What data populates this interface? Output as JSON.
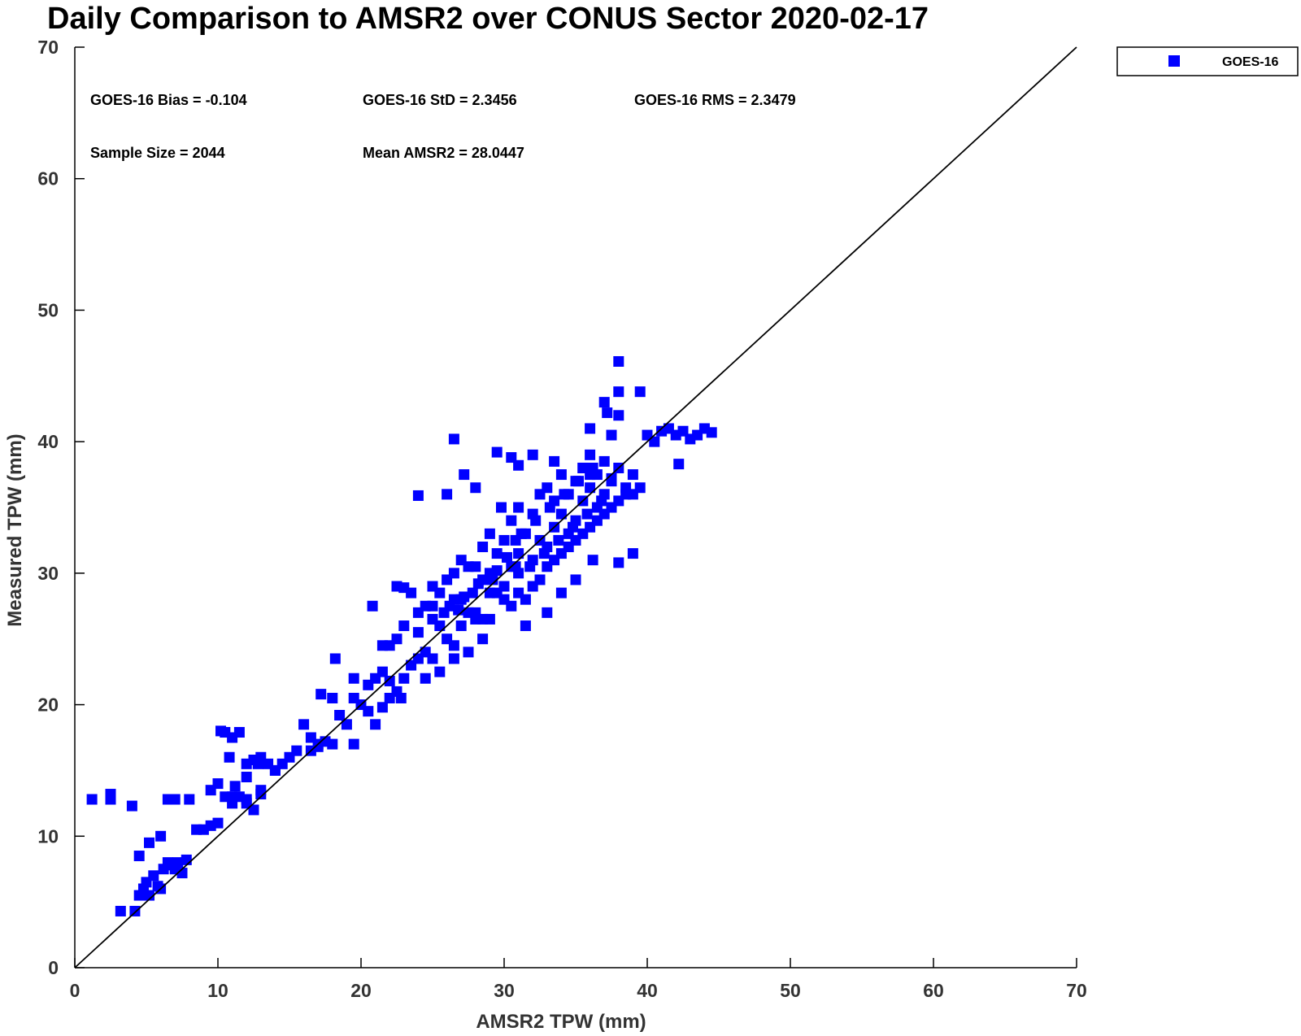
{
  "chart_data": {
    "type": "scatter",
    "title": "Daily Comparison to AMSR2 over CONUS Sector 2020-02-17",
    "xlabel": "AMSR2 TPW (mm)",
    "ylabel": "Measured TPW (mm)",
    "xlim": [
      0,
      70
    ],
    "ylim": [
      0,
      70
    ],
    "xticks": [
      "0",
      "10",
      "20",
      "30",
      "40",
      "50",
      "60",
      "70"
    ],
    "yticks": [
      "0",
      "10",
      "20",
      "30",
      "40",
      "50",
      "60",
      "70"
    ],
    "grid": false,
    "legend": {
      "placement": "outside-top-right",
      "entries": [
        "GOES-16"
      ]
    },
    "reference_line": {
      "type": "1:1",
      "x": [
        0,
        70
      ],
      "y": [
        0,
        70
      ],
      "color": "#000000"
    },
    "annotations": {
      "bias": "GOES-16 Bias = -0.104",
      "std": "GOES-16 StD = 2.3456",
      "rms": "GOES-16 RMS = 2.3479",
      "sample_size": "Sample Size = 2044",
      "mean": "Mean AMSR2 = 28.0447"
    },
    "series": [
      {
        "name": "GOES-16",
        "color": "#0000ff",
        "marker": "square",
        "x": [
          1.2,
          2.5,
          2.5,
          4.0,
          3.2,
          4.2,
          4.5,
          4.8,
          5.0,
          5.2,
          5.5,
          5.8,
          6.0,
          6.2,
          6.5,
          6.8,
          7.0,
          7.2,
          7.5,
          7.8,
          4.5,
          5.2,
          6.0,
          6.5,
          7.0,
          8.0,
          8.5,
          9.0,
          9.5,
          10.0,
          10.5,
          11.0,
          11.5,
          12.0,
          12.5,
          13.0,
          10.5,
          11.0,
          11.5,
          12.0,
          12.5,
          13.0,
          13.5,
          14.0,
          10.2,
          10.8,
          11.2,
          12.0,
          12.8,
          9.5,
          10.0,
          11.0,
          12.0,
          13.0,
          14.0,
          14.5,
          15.0,
          15.5,
          16.0,
          16.5,
          17.0,
          17.5,
          18.0,
          17.2,
          18.5,
          19.0,
          19.5,
          16.5,
          17.0,
          18.2,
          19.5,
          20.0,
          20.5,
          21.0,
          21.5,
          22.0,
          21.0,
          20.5,
          21.5,
          22.0,
          22.5,
          23.0,
          23.5,
          24.0,
          22.0,
          22.5,
          23.0,
          24.0,
          24.5,
          25.0,
          23.5,
          24.0,
          25.0,
          25.5,
          26.0,
          26.5,
          27.0,
          24.5,
          25.5,
          26.5,
          27.5,
          28.0,
          25.0,
          26.0,
          27.0,
          28.0,
          28.5,
          29.0,
          26.5,
          27.5,
          28.5,
          29.5,
          30.0,
          30.5,
          27.0,
          28.0,
          29.0,
          30.0,
          31.0,
          31.5,
          28.5,
          29.5,
          30.5,
          31.0,
          32.0,
          32.5,
          29.0,
          30.0,
          31.0,
          32.0,
          33.0,
          33.5,
          30.5,
          31.5,
          32.5,
          33.0,
          34.0,
          34.5,
          31.0,
          32.0,
          33.5,
          34.5,
          35.0,
          35.5,
          32.5,
          33.5,
          34.0,
          35.0,
          36.0,
          36.5,
          33.0,
          34.5,
          35.5,
          36.5,
          37.0,
          37.5,
          34.0,
          35.0,
          36.0,
          37.0,
          38.0,
          38.5,
          35.5,
          36.5,
          37.5,
          38.5,
          39.0,
          39.5,
          36.0,
          37.0,
          38.0,
          39.0,
          40.0,
          40.5,
          41.0,
          41.5,
          42.0,
          42.5,
          43.0,
          43.5,
          44.0,
          44.5,
          42.2,
          38.0,
          38.0,
          39.5,
          37.0,
          37.2,
          37.5,
          36.0,
          38.0,
          29.5,
          27.2,
          26.0,
          28.0,
          29.8,
          30.5,
          32.0,
          31.0,
          24.0,
          26.5,
          39.0,
          38.0,
          36.0,
          37.5,
          33.5,
          35.5,
          23.0,
          22.5,
          20.8,
          18.0,
          19.5,
          21.5,
          22.8,
          24.5,
          25.5,
          26.5,
          25.0,
          27.5,
          28.5,
          29.0,
          31.5,
          33.0,
          34.0,
          35.0,
          36.2,
          30.8,
          29.2,
          27.8,
          26.2,
          25.8,
          31.8,
          32.8,
          33.8,
          34.8,
          35.8,
          36.8,
          30.2,
          29.5,
          28.2,
          27.2,
          26.8,
          30.8,
          31.2,
          32.2,
          33.2,
          34.2,
          35.2,
          36.2
        ],
        "y": [
          12.8,
          13.2,
          12.8,
          12.3,
          4.3,
          4.3,
          5.5,
          6.0,
          6.5,
          5.5,
          7.0,
          6.2,
          6.0,
          7.5,
          8.0,
          7.8,
          7.5,
          8.0,
          7.2,
          8.2,
          8.5,
          9.5,
          10.0,
          12.8,
          12.8,
          12.8,
          10.5,
          10.5,
          10.8,
          11.0,
          13.0,
          12.5,
          13.0,
          12.5,
          12.0,
          13.5,
          17.9,
          17.5,
          17.9,
          15.5,
          15.8,
          16.0,
          15.5,
          15.0,
          18.0,
          16.0,
          13.8,
          14.5,
          15.5,
          13.5,
          14.0,
          13.0,
          12.8,
          13.2,
          15.0,
          15.5,
          16.0,
          16.5,
          18.5,
          17.5,
          16.8,
          17.2,
          17.0,
          20.8,
          19.2,
          18.5,
          20.5,
          16.5,
          17.0,
          23.5,
          17.0,
          20.0,
          21.5,
          22.0,
          22.5,
          21.8,
          18.5,
          19.5,
          19.8,
          20.5,
          21.0,
          22.0,
          23.0,
          23.5,
          24.5,
          25.0,
          26.0,
          25.5,
          24.0,
          23.5,
          28.5,
          27.0,
          26.5,
          26.0,
          25.0,
          24.5,
          26.0,
          27.5,
          28.5,
          28.0,
          27.0,
          26.5,
          29.0,
          29.5,
          28.0,
          27.0,
          26.5,
          28.5,
          30.0,
          30.5,
          29.5,
          28.5,
          28.0,
          27.5,
          31.0,
          30.5,
          30.0,
          29.0,
          28.5,
          28.0,
          32.0,
          31.5,
          30.5,
          30.0,
          29.0,
          29.5,
          33.0,
          32.5,
          31.5,
          31.0,
          30.5,
          31.0,
          34.0,
          33.0,
          32.5,
          32.0,
          31.5,
          32.0,
          35.0,
          34.5,
          33.5,
          33.0,
          32.5,
          33.0,
          36.0,
          35.5,
          34.5,
          34.0,
          33.5,
          34.0,
          36.5,
          36.0,
          35.5,
          35.0,
          34.5,
          35.0,
          37.5,
          37.0,
          36.5,
          36.0,
          35.5,
          36.0,
          38.0,
          37.5,
          37.0,
          36.5,
          36.0,
          36.5,
          39.0,
          38.5,
          38.0,
          37.5,
          40.5,
          40.0,
          40.8,
          41.0,
          40.5,
          40.8,
          40.2,
          40.5,
          41.0,
          40.7,
          38.3,
          46.1,
          43.8,
          43.8,
          43.0,
          42.2,
          40.5,
          41.0,
          42.0,
          39.2,
          37.5,
          36.0,
          36.5,
          35.0,
          38.8,
          39.0,
          38.2,
          35.9,
          40.2,
          31.5,
          30.8,
          37.5,
          37.2,
          38.5,
          38.0,
          28.9,
          29.0,
          27.5,
          20.5,
          22.0,
          24.5,
          20.5,
          22.0,
          22.5,
          23.5,
          27.5,
          24.0,
          25.0,
          26.5,
          26.0,
          27.0,
          28.5,
          29.5,
          31.0,
          30.5,
          29.5,
          28.5,
          27.5,
          27.0,
          30.5,
          31.5,
          32.5,
          33.5,
          34.5,
          35.5,
          31.2,
          30.2,
          29.2,
          28.2,
          27.2,
          32.5,
          33.0,
          34.0,
          35.0,
          36.0,
          37.0,
          38.0
        ]
      }
    ]
  }
}
